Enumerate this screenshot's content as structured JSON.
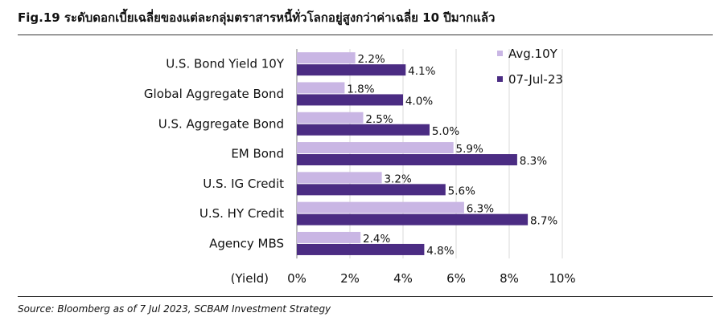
{
  "title": "Fig.19 ระดับดอกเบี้ยเฉลี่ยของแต่ละกลุ่มตราสารหนี้ทั่วโลกอยู่สูงกว่าค่าเฉลี่ย 10 ปีมากแล้ว",
  "source": "Source: Bloomberg as of 7 Jul 2023, SCBAM Investment Strategy",
  "colors": {
    "avg": "#C9B6E4",
    "current": "#4B2C83",
    "gridline": "#D9D9D9",
    "axis": "#7F7F7F"
  },
  "chart_data": {
    "type": "bar",
    "orientation": "horizontal",
    "title": "",
    "xlabel": "(Yield)",
    "ylabel": "",
    "xlim": [
      0,
      10
    ],
    "x_ticks": [
      "0%",
      "2%",
      "4%",
      "6%",
      "8%",
      "10%"
    ],
    "grid": true,
    "legend_position": "top-right",
    "categories": [
      "U.S. Bond Yield 10Y",
      "Global Aggregate Bond",
      "U.S. Aggregate Bond",
      "EM Bond",
      "U.S. IG Credit",
      "U.S. HY Credit",
      "Agency MBS"
    ],
    "series": [
      {
        "name": "Avg.10Y",
        "values": [
          2.2,
          1.8,
          2.5,
          5.9,
          3.2,
          6.3,
          2.4
        ],
        "labels": [
          "2.2%",
          "1.8%",
          "2.5%",
          "5.9%",
          "3.2%",
          "6.3%",
          "2.4%"
        ]
      },
      {
        "name": "07-Jul-23",
        "values": [
          4.1,
          4.0,
          5.0,
          8.3,
          5.6,
          8.7,
          4.8
        ],
        "labels": [
          "4.1%",
          "4.0%",
          "5.0%",
          "8.3%",
          "5.6%",
          "8.7%",
          "4.8%"
        ]
      }
    ]
  }
}
